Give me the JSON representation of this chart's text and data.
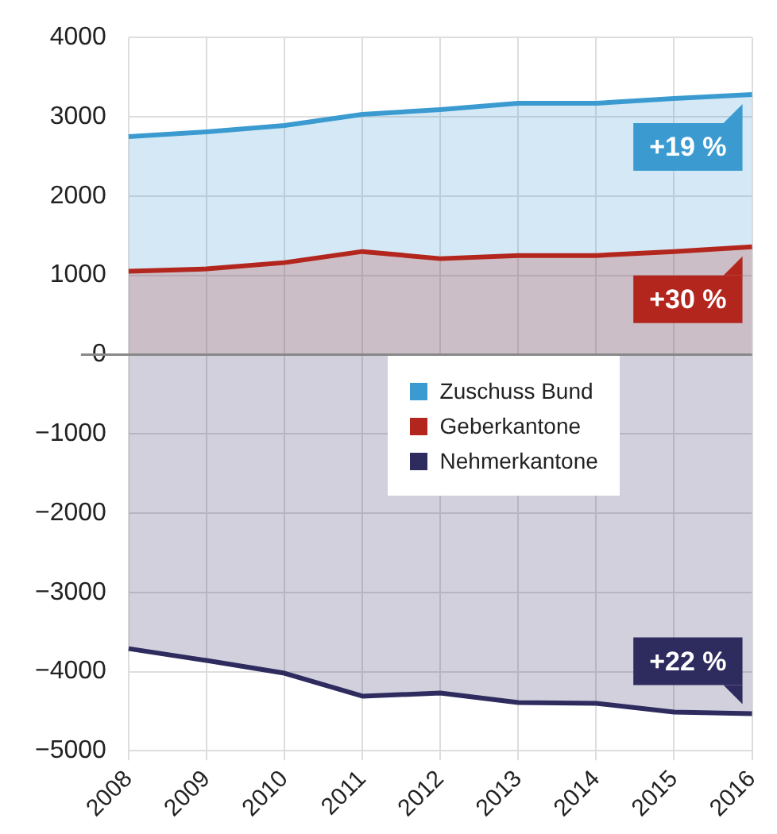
{
  "chart_data": {
    "type": "area",
    "categories": [
      "2008",
      "2009",
      "2010",
      "2011",
      "2012",
      "2013",
      "2014",
      "2015",
      "2016"
    ],
    "series": [
      {
        "name": "Zuschuss Bund",
        "color": "#3b9bd1",
        "values": [
          2750,
          2810,
          2890,
          3030,
          3090,
          3170,
          3170,
          3230,
          3280
        ]
      },
      {
        "name": "Geberkantone",
        "color": "#b3261e",
        "values": [
          1050,
          1080,
          1160,
          1300,
          1210,
          1250,
          1250,
          1300,
          1360
        ]
      },
      {
        "name": "Nehmerkantone",
        "color": "#2e2b5f",
        "values": [
          -3710,
          -3860,
          -4020,
          -4310,
          -4270,
          -4390,
          -4400,
          -4510,
          -4530
        ]
      }
    ],
    "ylim": [
      -5000,
      4000
    ],
    "yticks": [
      -5000,
      -4000,
      -3000,
      -2000,
      -1000,
      0,
      1000,
      2000,
      3000,
      4000
    ],
    "grid": true,
    "legend": "center",
    "annotations": [
      {
        "text": "+19 %",
        "x": "2016",
        "y": 3280
      },
      {
        "text": "+30 %",
        "x": "2016",
        "y": 1360
      },
      {
        "text": "+22 %",
        "x": "2016",
        "y": -4530
      }
    ]
  }
}
